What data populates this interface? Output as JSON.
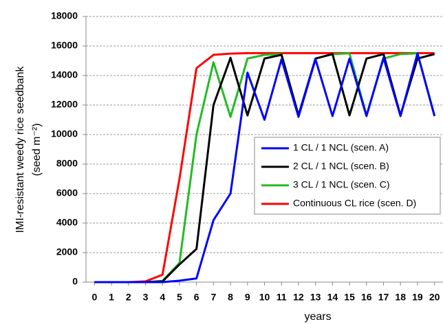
{
  "chart_data": {
    "type": "line",
    "y_label": "IMI-resistant weedy rice seedbank",
    "y_label_unit": "(seed m⁻²)",
    "x_label": "years",
    "x": [
      0,
      1,
      2,
      3,
      4,
      5,
      6,
      7,
      8,
      9,
      10,
      11,
      12,
      13,
      14,
      15,
      16,
      17,
      18,
      19,
      20
    ],
    "series": [
      {
        "name": "1 CL / 1 NCL (scen. A)",
        "color": "#0000ff",
        "values": [
          0,
          0,
          0,
          0,
          0,
          100,
          250,
          4200,
          6000,
          14200,
          11000,
          15100,
          11200,
          15100,
          11250,
          15150,
          11250,
          15200,
          11250,
          15500,
          11250
        ]
      },
      {
        "name": "2 CL / 1 NCL (scen. B)",
        "color": "#000000",
        "values": [
          0,
          0,
          0,
          0,
          50,
          1200,
          2250,
          12000,
          15200,
          11300,
          15150,
          15400,
          11300,
          15150,
          15450,
          11300,
          15150,
          15450,
          11300,
          15150,
          15450
        ]
      },
      {
        "name": "3 CL / 1 NCL (scen. C)",
        "color": "#22bb22",
        "values": [
          0,
          0,
          0,
          0,
          80,
          1300,
          10000,
          14900,
          11200,
          15150,
          15400,
          15450,
          11300,
          15150,
          15450,
          15500,
          11300,
          15150,
          15450,
          15500,
          11300
        ]
      },
      {
        "name": "Continuous CL rice (scen. D)",
        "color": "#ff0000",
        "values": [
          0,
          0,
          0,
          50,
          500,
          7000,
          14500,
          15400,
          15480,
          15520,
          15520,
          15520,
          15520,
          15520,
          15520,
          15520,
          15520,
          15520,
          15520,
          15520,
          15520
        ]
      }
    ],
    "xlim": [
      -0.5,
      20.5
    ],
    "xticks": [
      0,
      1,
      2,
      3,
      4,
      5,
      6,
      7,
      8,
      9,
      10,
      11,
      12,
      13,
      14,
      15,
      16,
      17,
      18,
      19,
      20
    ],
    "ylim": [
      0,
      18000
    ],
    "yticks": [
      0,
      2000,
      4000,
      6000,
      8000,
      10000,
      12000,
      14000,
      16000,
      18000
    ],
    "grid": true,
    "legend": "right"
  }
}
